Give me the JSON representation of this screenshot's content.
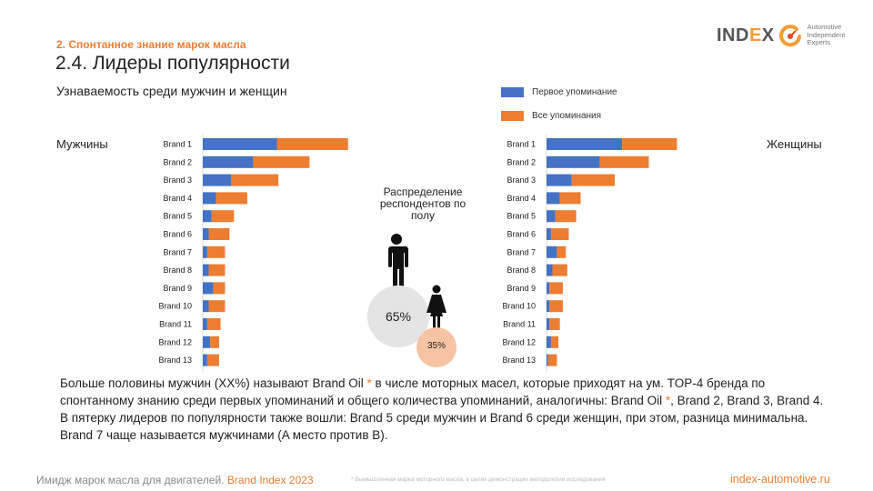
{
  "header": {
    "section": "2. Спонтанное знание марок масла",
    "title": "2.4. Лидеры популярности",
    "subtitle": "Узнаваемость среди мужчин и женщин"
  },
  "logo": {
    "word_part1": "IND",
    "word_part2": "E",
    "word_part3": "X",
    "tagline": [
      "Automotive",
      "Independent",
      "Experts"
    ]
  },
  "colors": {
    "first_mention": "#4472c4",
    "all_mentions": "#ed7d31",
    "accent": "#ed7d31",
    "men_circle": "#e4e4e4",
    "women_circle": "#f6c4a3"
  },
  "legend": {
    "first": "Первое упоминание",
    "all": "Все упоминания"
  },
  "labels": {
    "men": "Мужчины",
    "women": "Женщины"
  },
  "chart_data": [
    {
      "type": "bar",
      "orientation": "horizontal",
      "stacked": true,
      "title": "Мужчины",
      "categories": [
        "Brand 1",
        "Brand 2",
        "Brand 3",
        "Brand 4",
        "Brand 5",
        "Brand 6",
        "Brand 7",
        "Brand 8",
        "Brand 9",
        "Brand 10",
        "Brand 11",
        "Brand 12",
        "Brand 13"
      ],
      "series": [
        {
          "name": "Первое упоминание",
          "values": [
            50,
            34,
            19,
            9,
            6,
            4,
            3,
            4,
            7,
            4,
            3,
            5,
            3
          ]
        },
        {
          "name": "Все упоминания",
          "values": [
            48,
            38,
            32,
            21,
            15,
            14,
            12,
            11,
            8,
            11,
            9,
            6,
            8
          ]
        }
      ],
      "xlim": [
        0,
        100
      ],
      "grid": false,
      "axis_labels_shown": false
    },
    {
      "type": "bar",
      "orientation": "horizontal",
      "stacked": true,
      "title": "Женщины",
      "categories": [
        "Brand 1",
        "Brand 2",
        "Brand 3",
        "Brand 4",
        "Brand 5",
        "Brand 6",
        "Brand 7",
        "Brand 8",
        "Brand 9",
        "Brand 10",
        "Brand 11",
        "Brand 12",
        "Brand 13"
      ],
      "series": [
        {
          "name": "Первое упоминание",
          "values": [
            51,
            36,
            17,
            9,
            6,
            3,
            7,
            4,
            2,
            2,
            2,
            3,
            1
          ]
        },
        {
          "name": "Все упоминания",
          "values": [
            37,
            33,
            29,
            14,
            14,
            12,
            6,
            10,
            9,
            9,
            7,
            5,
            6
          ]
        }
      ],
      "xlim": [
        0,
        100
      ],
      "grid": false,
      "axis_labels_shown": false
    }
  ],
  "distribution": {
    "title": "Распределение респондентов по полу",
    "men_pct": "65%",
    "women_pct": "35%",
    "men_share": 65,
    "women_share": 35
  },
  "body": {
    "p1_a": "Больше половины мужчин (XX%) называют Brand Oil ",
    "star": "*",
    "p1_b": " в числе моторных масел, которые приходят на ум. TOP-4 бренда по спонтанному знанию среди первых упоминаний и общего количества упоминаний, аналогичны: Brand Oil ",
    "p1_c": ", Brand 2, Brand 3, Brand 4.",
    "p2": "В пятерку лидеров по популярности также вошли:  Brand 5 среди мужчин и  Brand 6 среди женщин, при этом, разница минимальна. Brand 7 чаще называется мужчинами (A место против B)."
  },
  "footer": {
    "left": "Имидж марок масла для двигателей. ",
    "brand": "Brand Index 2023",
    "footnote": "* Вымышленная марка моторного масла, в целях демонстрации методологии исследования",
    "right": "index-automotive.ru"
  }
}
